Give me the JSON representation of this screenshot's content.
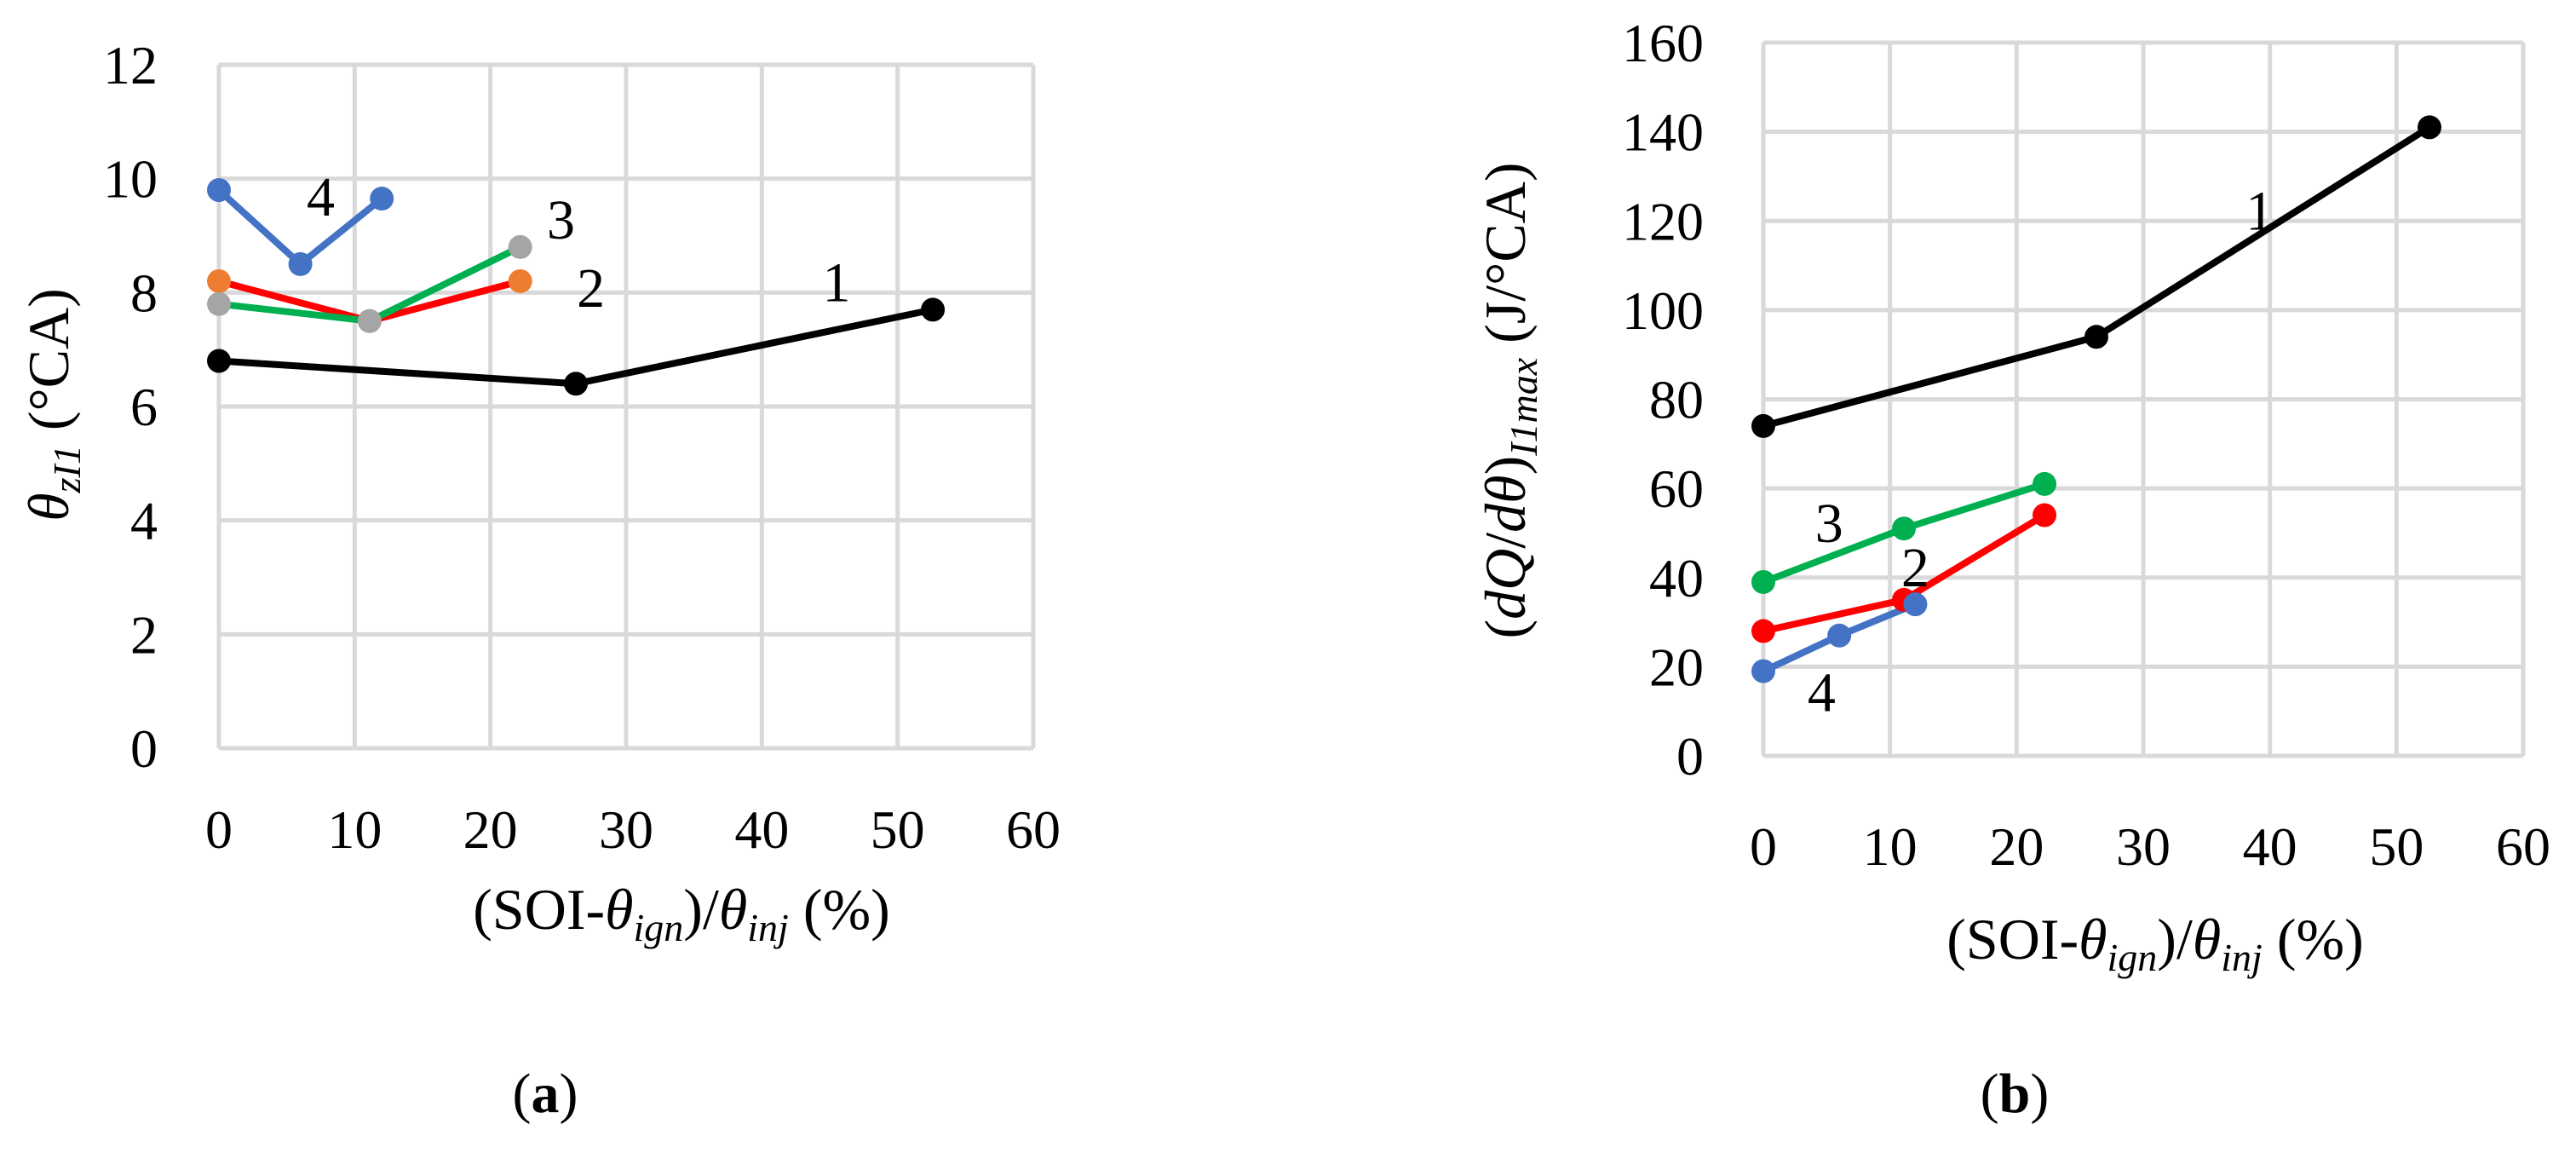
{
  "chart_data": [
    {
      "type": "line",
      "panel": "a",
      "panel_label": {
        "open": "(",
        "letter": "a",
        "close": ")"
      },
      "xlabel": {
        "prefix": "(SOI-",
        "theta1": "θ",
        "sub1": "ign",
        "mid": ")/",
        "theta2": "θ",
        "sub2": "inj",
        "suffix": " (%)"
      },
      "ylabel": {
        "theta": "θ",
        "sub": "zI1",
        "suffix": " (°CA)"
      },
      "xlim": [
        0,
        60
      ],
      "ylim": [
        0,
        12
      ],
      "xticks": [
        0,
        10,
        20,
        30,
        40,
        50,
        60
      ],
      "yticks": [
        0,
        2,
        4,
        6,
        8,
        10,
        12
      ],
      "grid": true,
      "series": [
        {
          "name": "1",
          "color": "#000000",
          "x": [
            0,
            26.3,
            52.6
          ],
          "y": [
            6.8,
            6.4,
            7.7
          ]
        },
        {
          "name": "2",
          "color": "#ff0000",
          "marker_color": "#ed7d31",
          "x": [
            0,
            11.1,
            22.2
          ],
          "y": [
            8.2,
            7.5,
            8.2
          ]
        },
        {
          "name": "3",
          "color": "#00b050",
          "marker_color": "#a5a5a5",
          "x": [
            0,
            11.1,
            22.2
          ],
          "y": [
            7.8,
            7.5,
            8.8
          ]
        },
        {
          "name": "4",
          "color": "#4472c4",
          "marker_color": "#4472c4",
          "x": [
            0,
            6,
            12
          ],
          "y": [
            9.8,
            8.5,
            9.65
          ]
        }
      ],
      "series_labels": [
        {
          "text": "1",
          "x": 45.5,
          "y": 7.85
        },
        {
          "text": "2",
          "x": 27.4,
          "y": 7.75
        },
        {
          "text": "3",
          "x": 25.2,
          "y": 8.95
        },
        {
          "text": "4",
          "x": 7.5,
          "y": 9.35
        }
      ]
    },
    {
      "type": "line",
      "panel": "b",
      "panel_label": {
        "open": "(",
        "letter": "b",
        "close": ")"
      },
      "xlabel": {
        "prefix": "(SOI-",
        "theta1": "θ",
        "sub1": "ign",
        "mid": ")/",
        "theta2": "θ",
        "sub2": "inj",
        "suffix": " (%)"
      },
      "ylabel": {
        "open": "(",
        "dq": "dQ",
        "slash": "/",
        "dtheta": "dθ",
        "close": ")",
        "sub": "I1max",
        "suffix": " (J/°CA)"
      },
      "xlim": [
        0,
        60
      ],
      "ylim": [
        0,
        160
      ],
      "xticks": [
        0,
        10,
        20,
        30,
        40,
        50,
        60
      ],
      "yticks": [
        0,
        20,
        40,
        60,
        80,
        100,
        120,
        140,
        160
      ],
      "grid": true,
      "series": [
        {
          "name": "1",
          "color": "#000000",
          "x": [
            0,
            26.3,
            52.6
          ],
          "y": [
            74,
            94,
            141
          ]
        },
        {
          "name": "2",
          "color": "#ff0000",
          "marker_color": "#ff0000",
          "x": [
            0,
            11.1,
            22.2
          ],
          "y": [
            28,
            35,
            54
          ]
        },
        {
          "name": "3",
          "color": "#00b050",
          "marker_color": "#00b050",
          "x": [
            0,
            11.1,
            22.2
          ],
          "y": [
            39,
            51,
            61
          ]
        },
        {
          "name": "4",
          "color": "#4472c4",
          "marker_color": "#4472c4",
          "x": [
            0,
            6,
            12
          ],
          "y": [
            19,
            27,
            34
          ]
        }
      ],
      "series_labels": [
        {
          "text": "1",
          "x": 39.2,
          "y": 118
        },
        {
          "text": "2",
          "x": 12.0,
          "y": 38
        },
        {
          "text": "3",
          "x": 5.2,
          "y": 48
        },
        {
          "text": "4",
          "x": 4.6,
          "y": 10
        }
      ]
    }
  ]
}
